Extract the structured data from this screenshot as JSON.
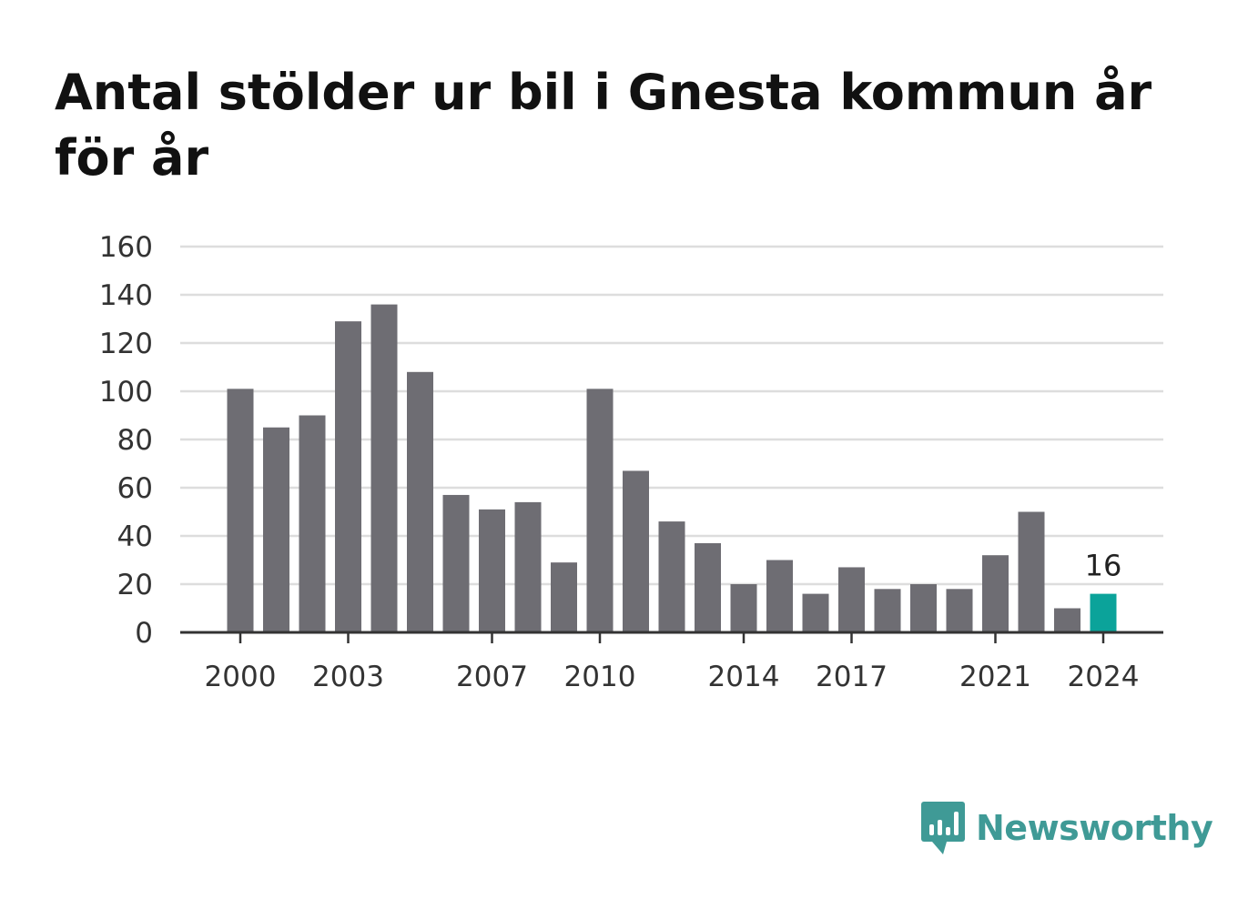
{
  "title": "Antal stölder ur bil i Gnesta kommun år för år",
  "brand": {
    "name": "Newsworthy",
    "icon": "newsworthy-logo-icon",
    "color": "#3f9a96"
  },
  "colors": {
    "bar": "#6e6d73",
    "highlight": "#0ba39a",
    "grid": "#dddddd",
    "axis": "#333333"
  },
  "chart_data": {
    "type": "bar",
    "title": "Antal stölder ur bil i Gnesta kommun år för år",
    "xlabel": "",
    "ylabel": "",
    "categories": [
      "2000",
      "2001",
      "2002",
      "2003",
      "2004",
      "2005",
      "2006",
      "2007",
      "2008",
      "2009",
      "2010",
      "2011",
      "2012",
      "2013",
      "2014",
      "2015",
      "2016",
      "2017",
      "2018",
      "2019",
      "2020",
      "2021",
      "2022",
      "2023",
      "2024"
    ],
    "values": [
      101,
      85,
      90,
      129,
      136,
      108,
      57,
      51,
      54,
      29,
      101,
      67,
      46,
      37,
      20,
      30,
      16,
      27,
      18,
      20,
      18,
      32,
      50,
      10,
      16
    ],
    "ylim": [
      0,
      160
    ],
    "yticks": [
      "0",
      "20",
      "40",
      "60",
      "80",
      "100",
      "120",
      "140",
      "160"
    ],
    "xtick_labels": [
      "2000",
      "2003",
      "2007",
      "2010",
      "2014",
      "2017",
      "2021",
      "2024"
    ],
    "highlight": {
      "category": "2024",
      "label": "16"
    },
    "grid": true,
    "legend": "none"
  }
}
